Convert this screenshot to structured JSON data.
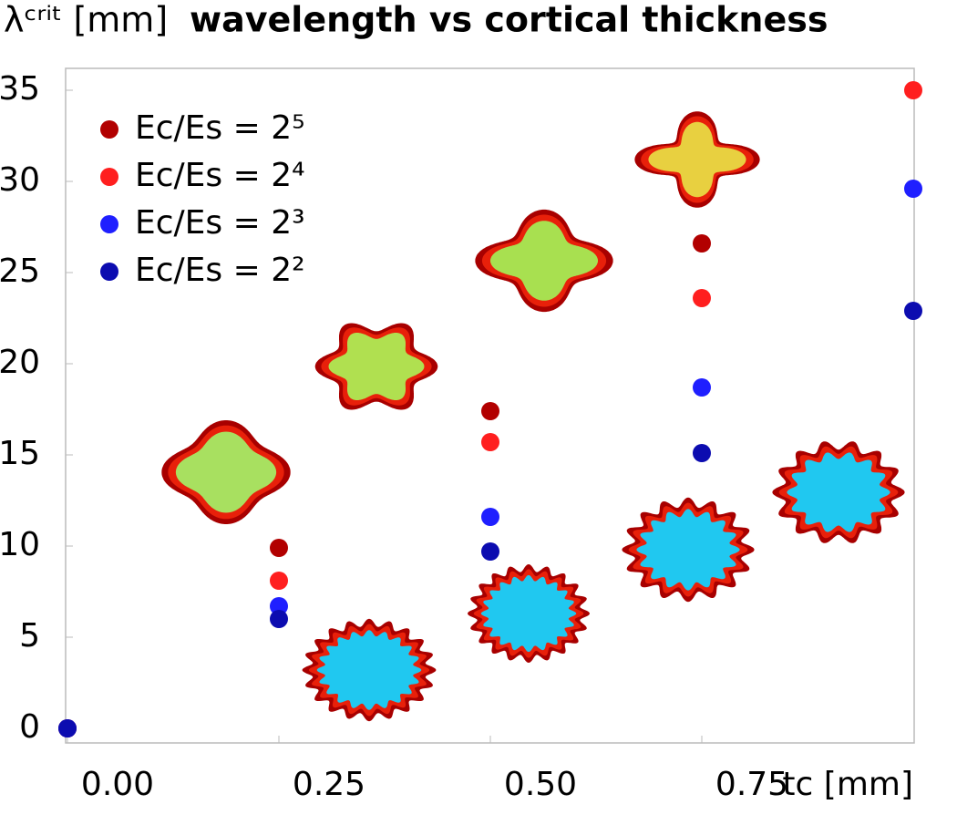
{
  "chart_data": {
    "type": "scatter",
    "title": "wavelength vs cortical thickness",
    "y_label": "λᶜʳⁱᵗ [mm]",
    "x_label": "tc [mm]",
    "x": [
      0,
      0.25,
      0.5,
      0.75,
      1.0
    ],
    "series": [
      {
        "name": "Ec/Es = 2⁵",
        "color": "#b20000",
        "values": [
          0,
          9.9,
          17.4,
          26.6,
          null
        ]
      },
      {
        "name": "Ec/Es = 2⁴",
        "color": "#ff1f1f",
        "values": [
          0,
          8.1,
          15.7,
          23.6,
          35.0
        ]
      },
      {
        "name": "Ec/Es = 2³",
        "color": "#1f1fff",
        "values": [
          0,
          6.7,
          11.6,
          18.7,
          29.6
        ]
      },
      {
        "name": "Ec/Es = 2²",
        "color": "#0c0cb0",
        "values": [
          0,
          6.0,
          9.7,
          15.1,
          22.9
        ]
      }
    ],
    "xlim": [
      0,
      1.0
    ],
    "ylim": [
      -0.8,
      36.2
    ],
    "xticks": [
      {
        "value": 0,
        "label": "0.00"
      },
      {
        "value": 0.25,
        "label": "0.25"
      },
      {
        "value": 0.5,
        "label": "0.50"
      },
      {
        "value": 0.75,
        "label": "0.75"
      }
    ],
    "yticks": [
      0,
      5,
      10,
      15,
      20,
      25,
      30,
      35
    ],
    "legend": "upper-left"
  }
}
